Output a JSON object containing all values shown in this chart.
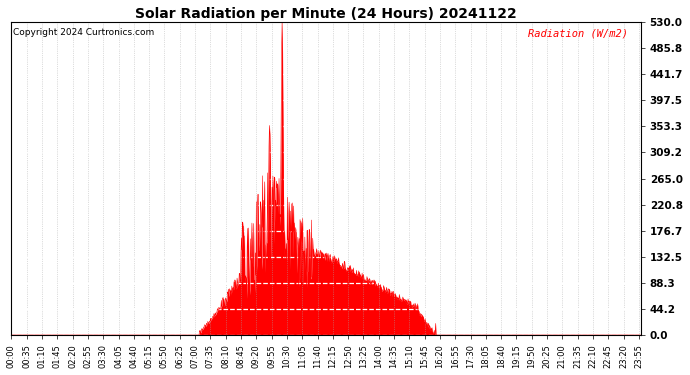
{
  "title": "Solar Radiation per Minute (24 Hours) 20241122",
  "copyright": "Copyright 2024 Curtronics.com",
  "ylabel": "Radiation (W/m2)",
  "ylabel_color": "#ff0000",
  "background_color": "#ffffff",
  "plot_bg_color": "#ffffff",
  "line_color": "#ff0000",
  "fill_color": "#ff0000",
  "grid_color": "#aaaaaa",
  "ylim": [
    0.0,
    530.0
  ],
  "yticks": [
    0.0,
    44.2,
    88.3,
    132.5,
    176.7,
    220.8,
    265.0,
    309.2,
    353.3,
    397.5,
    441.7,
    485.8,
    530.0
  ],
  "total_minutes": 1440,
  "sunrise_minute": 430,
  "sunset_minute": 970,
  "peak_minute": 619,
  "peak_value": 530.0,
  "tick_interval": 35
}
